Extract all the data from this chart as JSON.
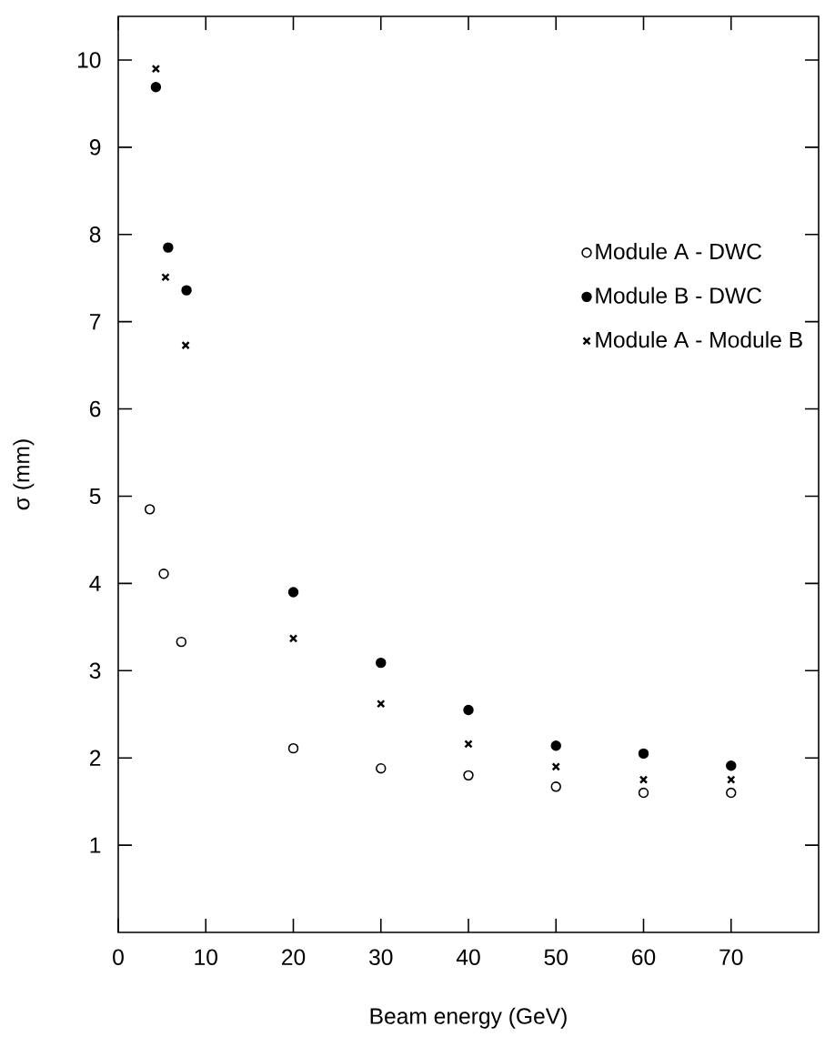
{
  "chart_data": {
    "type": "scatter",
    "xlabel": "Beam energy (GeV)",
    "ylabel": "σ (mm)",
    "xlim": [
      0,
      80
    ],
    "ylim": [
      0,
      10.5
    ],
    "xticks": [
      0,
      10,
      20,
      30,
      40,
      50,
      60,
      70
    ],
    "yticks": [
      1,
      2,
      3,
      4,
      5,
      6,
      7,
      8,
      9,
      10
    ],
    "legend": "top right",
    "grid": false,
    "series": [
      {
        "name": "Module  A - DWC",
        "color": "#ffffff",
        "marker": "circle",
        "x": [
          3.6,
          5.2,
          7.2,
          20,
          30,
          40,
          50,
          60,
          70
        ],
        "values": [
          4.85,
          4.11,
          3.33,
          2.11,
          1.88,
          1.8,
          1.67,
          1.6,
          1.6
        ]
      },
      {
        "name": "Module  B - DWC",
        "color": "#000000",
        "marker": "circle",
        "x": [
          4.3,
          5.7,
          7.8,
          20,
          30,
          40,
          50,
          60,
          70
        ],
        "values": [
          9.69,
          7.85,
          7.36,
          3.9,
          3.09,
          2.55,
          2.14,
          2.05,
          1.91
        ]
      },
      {
        "name": "Module  A - Module B",
        "color": "#000000",
        "marker": "cross",
        "x": [
          4.3,
          5.4,
          7.7,
          20,
          30,
          40,
          50,
          60,
          70
        ],
        "values": [
          9.9,
          7.51,
          6.73,
          3.37,
          2.62,
          2.16,
          1.9,
          1.75,
          1.75
        ]
      }
    ]
  }
}
